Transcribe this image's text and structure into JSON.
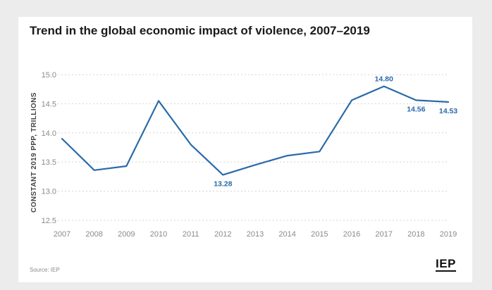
{
  "header": {
    "title": "Trend in the global economic impact of violence, 2007–2019"
  },
  "footer": {
    "source": "Source: IEP",
    "logo": "IEP"
  },
  "chart_data": {
    "type": "line",
    "title": "Trend in the global economic impact of violence, 2007–2019",
    "xlabel": "",
    "ylabel": "CONSTANT 2019 PPP, TRILLIONS",
    "x": [
      "2007",
      "2008",
      "2009",
      "2010",
      "2011",
      "2012",
      "2013",
      "2014",
      "2015",
      "2016",
      "2017",
      "2018",
      "2019"
    ],
    "series": [
      {
        "name": "",
        "values": [
          13.9,
          13.36,
          13.43,
          14.55,
          13.8,
          13.28,
          13.45,
          13.61,
          13.68,
          14.56,
          14.8,
          14.56,
          14.53
        ]
      }
    ],
    "yticks": [
      "15.0",
      "14.5",
      "14.0",
      "13.5",
      "13.0",
      "12.5"
    ],
    "ylim": [
      12.5,
      15.0
    ],
    "data_labels": [
      {
        "index": 5,
        "text": "13.28",
        "pos": "below"
      },
      {
        "index": 10,
        "text": "14.80",
        "pos": "above"
      },
      {
        "index": 11,
        "text": "14.56",
        "pos": "below"
      },
      {
        "index": 12,
        "text": "14.53",
        "pos": "below"
      }
    ],
    "grid": true,
    "colors": {
      "line": "#2a6aa9",
      "label": "#2a6aa9",
      "grid": "#d4d4d4",
      "tick": "#8a8a8a"
    }
  }
}
